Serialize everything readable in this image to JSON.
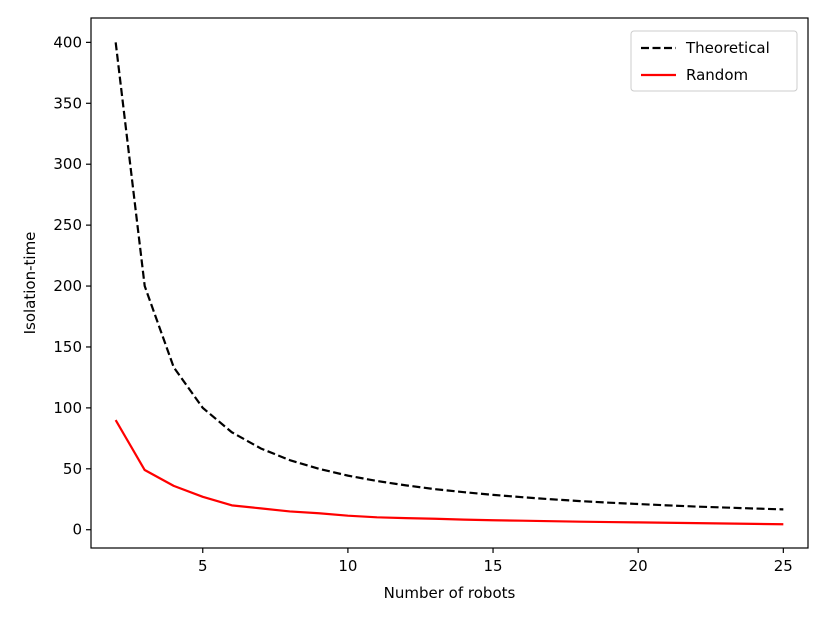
{
  "chart_data": {
    "type": "line",
    "xlabel": "Number of robots",
    "ylabel": "Isolation-time",
    "xlim": [
      1.15,
      25.85
    ],
    "ylim": [
      -15,
      420
    ],
    "xticks": [
      5,
      10,
      15,
      20,
      25
    ],
    "yticks": [
      0,
      50,
      100,
      150,
      200,
      250,
      300,
      350,
      400
    ],
    "grid": false,
    "legend_position": "top-right",
    "x": [
      2,
      3,
      4,
      5,
      6,
      7,
      8,
      9,
      10,
      11,
      12,
      13,
      14,
      15,
      16,
      17,
      18,
      19,
      20,
      21,
      22,
      23,
      24,
      25
    ],
    "series": [
      {
        "name": "Theoretical",
        "color": "#000000",
        "style": "dashed",
        "values": [
          400,
          200,
          133.3,
          100,
          80,
          66.7,
          57.1,
          50,
          44.4,
          40,
          36.4,
          33.3,
          30.8,
          28.6,
          26.7,
          25,
          23.5,
          22.2,
          21.1,
          20,
          19,
          18.2,
          17.4,
          16.7
        ]
      },
      {
        "name": "Random",
        "color": "#ff0000",
        "style": "solid",
        "values": [
          90,
          49,
          36,
          27,
          20,
          17.5,
          15,
          13.5,
          11.5,
          10.2,
          9.5,
          9,
          8.3,
          7.8,
          7.4,
          7,
          6.6,
          6.3,
          6,
          5.7,
          5.4,
          5.1,
          4.8,
          4.5
        ]
      }
    ]
  }
}
